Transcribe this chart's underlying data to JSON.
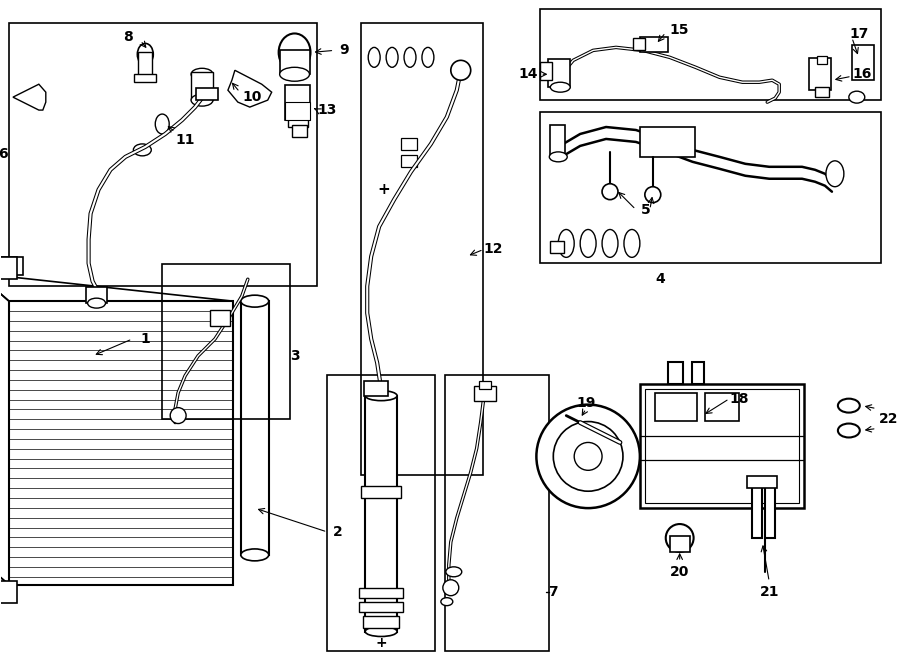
{
  "bg": "#ffffff",
  "lc": "#000000",
  "fw": 9.0,
  "fh": 6.61,
  "boxes": {
    "b6": [
      0.08,
      3.75,
      3.1,
      2.65
    ],
    "b3": [
      1.62,
      2.42,
      1.28,
      1.55
    ],
    "b12": [
      3.62,
      1.85,
      1.22,
      4.55
    ],
    "b2": [
      3.28,
      0.08,
      1.08,
      2.78
    ],
    "b7": [
      4.46,
      0.08,
      1.05,
      2.78
    ],
    "b14": [
      5.42,
      5.62,
      3.42,
      0.92
    ],
    "b4": [
      5.42,
      3.98,
      3.42,
      1.52
    ]
  }
}
